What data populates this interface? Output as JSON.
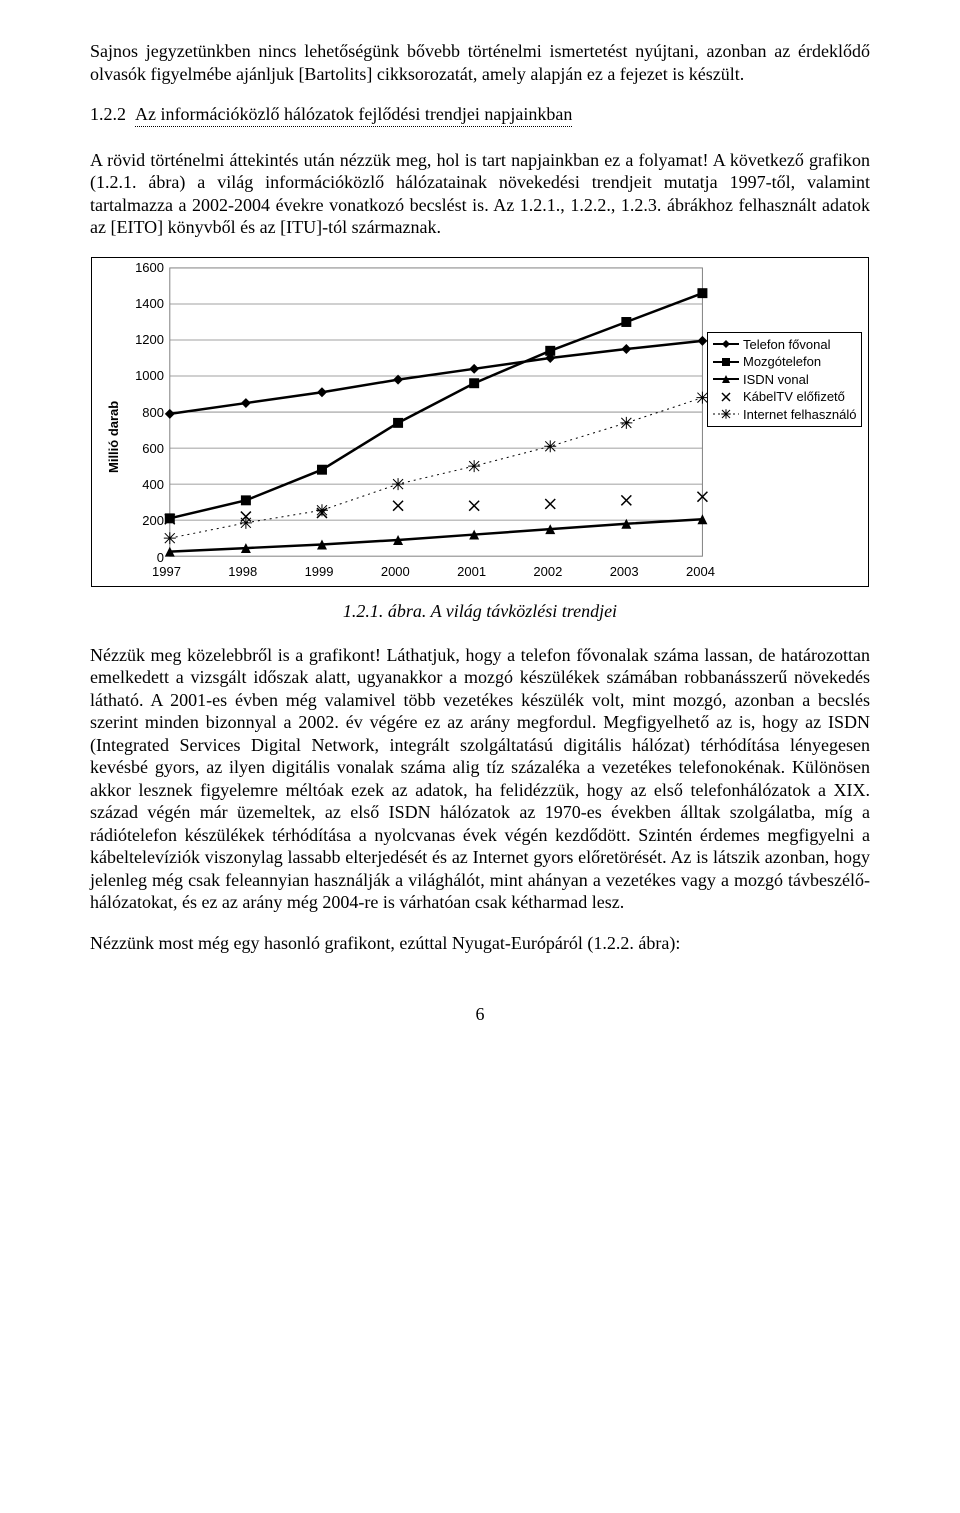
{
  "para1": "Sajnos jegyzetünkben nincs lehetőségünk bővebb történelmi ismertetést nyújtani, azonban az érdeklődő olvasók figyelmébe ajánljuk [Bartolits] cikksorozatát, amely alapján ez a fejezet is készült.",
  "heading": {
    "num": "1.2.2",
    "title": "Az információközlő hálózatok fejlődési trendjei napjainkban"
  },
  "para2": "A rövid történelmi áttekintés után nézzük meg, hol is tart napjainkban ez a folyamat! A következő grafikon (1.2.1. ábra) a világ információközlő hálózatainak növekedési trendjeit mutatja 1997-től, valamint tartalmazza a 2002-2004 évekre vonatkozó becslést is. Az 1.2.1., 1.2.2., 1.2.3. ábrákhoz felhasznált adatok az [EITO] könyvből és az [ITU]-tól származnak.",
  "chart": {
    "type": "line",
    "ylabel": "Millió darab",
    "ylim": [
      0,
      1600
    ],
    "ytick_step": 200,
    "categories": [
      "1997",
      "1998",
      "1999",
      "2000",
      "2001",
      "2002",
      "2003",
      "2004"
    ],
    "grid_color": "#808080",
    "background_color": "#ffffff",
    "plot_border_color": "#808080",
    "label_fontsize": 13,
    "series": [
      {
        "name": "Telefon fővonal",
        "marker": "diamond",
        "line": "solid",
        "width": 2.5,
        "color": "#000000",
        "values": [
          790,
          850,
          910,
          980,
          1040,
          1100,
          1150,
          1195
        ]
      },
      {
        "name": "Mozgótelefon",
        "marker": "square",
        "line": "solid",
        "width": 2.5,
        "color": "#000000",
        "values": [
          210,
          310,
          480,
          740,
          960,
          1140,
          1300,
          1460
        ]
      },
      {
        "name": "ISDN vonal",
        "marker": "triangle",
        "line": "solid",
        "width": 2.5,
        "color": "#000000",
        "values": [
          25,
          45,
          65,
          90,
          120,
          150,
          180,
          205
        ]
      },
      {
        "name": "KábelTV előfizető",
        "marker": "x",
        "line": "none",
        "width": 1,
        "color": "#000000",
        "values": [
          205,
          220,
          240,
          280,
          280,
          290,
          310,
          330
        ]
      },
      {
        "name": "Internet felhasználó",
        "marker": "star",
        "line": "dotted",
        "width": 1,
        "color": "#000000",
        "values": [
          100,
          185,
          255,
          400,
          500,
          610,
          740,
          880
        ]
      }
    ],
    "legend_title": ""
  },
  "caption": "1.2.1. ábra. A világ távközlési trendjei",
  "para3": "Nézzük meg közelebbről is a grafikont! Láthatjuk, hogy a telefon fővonalak száma lassan, de határozottan emelkedett a vizsgált időszak alatt, ugyanakkor a mozgó készülékek számában robbanásszerű növekedés látható. A 2001-es évben még valamivel több vezetékes készülék volt, mint mozgó, azonban a becslés szerint minden bizonnyal a 2002. év végére ez az arány megfordul. Megfigyelhető az is, hogy az ISDN (Integrated Services Digital Network, integrált szolgáltatású digitális hálózat) térhódítása lényegesen kevésbé gyors, az ilyen digitális vonalak száma alig tíz százaléka a vezetékes telefonokénak. Különösen akkor lesznek figyelemre méltóak ezek az adatok, ha felidézzük, hogy az első telefonhálózatok a XIX. század végén már üzemeltek, az első ISDN hálózatok az 1970-es években álltak szolgálatba, míg a rádiótelefon készülékek térhódítása a nyolcvanas évek végén kezdődött. Szintén érdemes megfigyelni a kábeltelevíziók viszonylag lassabb elterjedését és az Internet gyors előretörését. Az is látszik azonban, hogy jelenleg még csak feleannyian használják a világhálót, mint ahányan a vezetékes vagy a mozgó távbeszélő-hálózatokat, és ez az arány még 2004-re is várhatóan csak kétharmad lesz.",
  "para4": "Nézzünk most még egy hasonló grafikont, ezúttal Nyugat-Európáról (1.2.2. ábra):",
  "page_num": "6"
}
